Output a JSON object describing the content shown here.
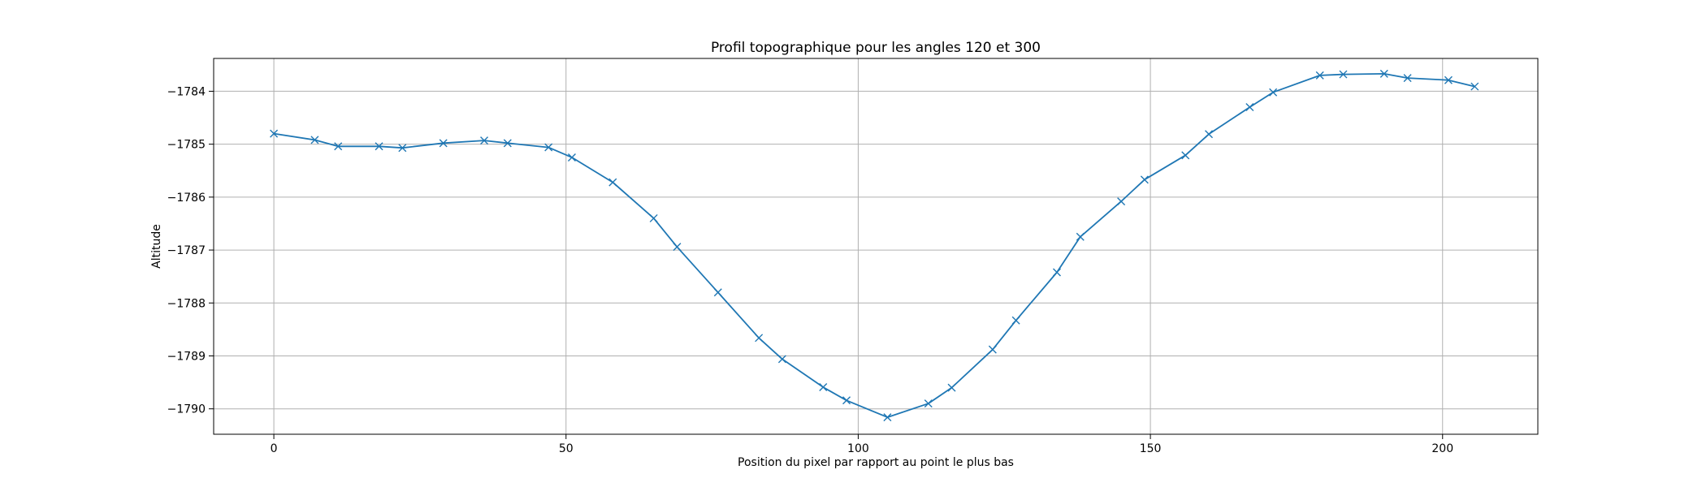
{
  "colors": {
    "line": "#1f77b4",
    "grid": "#b0b0b0",
    "axes": "#000000",
    "background": "#ffffff"
  },
  "chart_data": {
    "type": "line",
    "title": "Profil topographique pour les angles 120 et 300",
    "xlabel": "Position du pixel par rapport au point le plus bas",
    "ylabel": "Altitude",
    "xlim": [
      -10.3,
      216.3
    ],
    "ylim": [
      -1790.48,
      -1783.38
    ],
    "x_ticks": [
      0,
      50,
      100,
      150,
      200
    ],
    "x_tick_labels": [
      "0",
      "50",
      "100",
      "150",
      "200"
    ],
    "y_ticks": [
      -1790,
      -1789,
      -1788,
      -1787,
      -1786,
      -1785,
      -1784
    ],
    "y_tick_labels": [
      "−1790",
      "−1789",
      "−1788",
      "−1787",
      "−1786",
      "−1785",
      "−1784"
    ],
    "grid": true,
    "marker": "x",
    "series": [
      {
        "x": [
          0,
          7,
          11,
          18,
          22,
          29,
          36,
          40,
          47,
          51,
          58,
          65,
          69,
          76,
          83,
          87,
          94,
          98,
          105,
          112,
          116,
          123,
          127,
          134,
          138,
          145,
          149,
          156,
          160,
          167,
          171,
          179,
          183,
          190,
          194,
          201,
          205.5
        ],
        "y": [
          -1784.8,
          -1784.92,
          -1785.04,
          -1785.04,
          -1785.07,
          -1784.98,
          -1784.93,
          -1784.98,
          -1785.06,
          -1785.25,
          -1785.72,
          -1786.4,
          -1786.94,
          -1787.8,
          -1788.66,
          -1789.06,
          -1789.59,
          -1789.84,
          -1790.16,
          -1789.9,
          -1789.6,
          -1788.88,
          -1788.33,
          -1787.42,
          -1786.75,
          -1786.08,
          -1785.67,
          -1785.21,
          -1784.81,
          -1784.3,
          -1784.02,
          -1783.7,
          -1783.68,
          -1783.67,
          -1783.75,
          -1783.79,
          -1783.91
        ]
      }
    ]
  }
}
